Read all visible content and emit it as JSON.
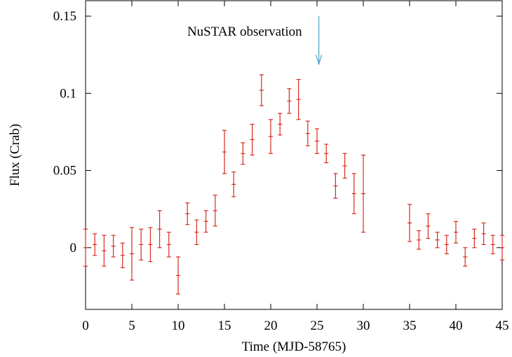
{
  "chart_data": {
    "type": "scatter",
    "xlabel": "Time (MJD-58765)",
    "ylabel": "Flux (Crab)",
    "xlim": [
      0,
      45
    ],
    "ylim": [
      -0.04,
      0.16
    ],
    "x_ticks": [
      0,
      5,
      10,
      15,
      20,
      25,
      30,
      35,
      40,
      45
    ],
    "y_ticks": [
      0,
      0.05,
      0.1,
      0.15
    ],
    "y_tick_labels": [
      "0",
      "0.05",
      "0.1",
      "0.15"
    ],
    "grid": false,
    "series": [
      {
        "color": "#d62c1c",
        "style": "points with vertical error bars",
        "points": [
          {
            "x": 0,
            "y": 0.0,
            "err": 0.012
          },
          {
            "x": 1,
            "y": 0.002,
            "err": 0.007
          },
          {
            "x": 2,
            "y": -0.002,
            "err": 0.01
          },
          {
            "x": 3,
            "y": 0.001,
            "err": 0.007
          },
          {
            "x": 4,
            "y": -0.005,
            "err": 0.008
          },
          {
            "x": 5,
            "y": -0.004,
            "err": 0.017
          },
          {
            "x": 6,
            "y": 0.002,
            "err": 0.01
          },
          {
            "x": 7,
            "y": 0.002,
            "err": 0.011
          },
          {
            "x": 8,
            "y": 0.012,
            "err": 0.012
          },
          {
            "x": 9,
            "y": 0.002,
            "err": 0.008
          },
          {
            "x": 10,
            "y": -0.018,
            "err": 0.012
          },
          {
            "x": 11,
            "y": 0.022,
            "err": 0.007
          },
          {
            "x": 12,
            "y": 0.01,
            "err": 0.008
          },
          {
            "x": 13,
            "y": 0.017,
            "err": 0.007
          },
          {
            "x": 14,
            "y": 0.024,
            "err": 0.01
          },
          {
            "x": 15,
            "y": 0.062,
            "err": 0.014
          },
          {
            "x": 16,
            "y": 0.041,
            "err": 0.008
          },
          {
            "x": 17,
            "y": 0.061,
            "err": 0.007
          },
          {
            "x": 18,
            "y": 0.07,
            "err": 0.01
          },
          {
            "x": 19,
            "y": 0.102,
            "err": 0.01
          },
          {
            "x": 20,
            "y": 0.072,
            "err": 0.011
          },
          {
            "x": 21,
            "y": 0.08,
            "err": 0.007
          },
          {
            "x": 22,
            "y": 0.095,
            "err": 0.008
          },
          {
            "x": 23,
            "y": 0.096,
            "err": 0.013
          },
          {
            "x": 24,
            "y": 0.074,
            "err": 0.008
          },
          {
            "x": 25,
            "y": 0.069,
            "err": 0.008
          },
          {
            "x": 26,
            "y": 0.061,
            "err": 0.006
          },
          {
            "x": 27,
            "y": 0.04,
            "err": 0.008
          },
          {
            "x": 28,
            "y": 0.053,
            "err": 0.008
          },
          {
            "x": 29,
            "y": 0.035,
            "err": 0.013
          },
          {
            "x": 30,
            "y": 0.035,
            "err": 0.025
          },
          {
            "x": 35,
            "y": 0.016,
            "err": 0.012
          },
          {
            "x": 36,
            "y": 0.005,
            "err": 0.006
          },
          {
            "x": 37,
            "y": 0.014,
            "err": 0.008
          },
          {
            "x": 38,
            "y": 0.005,
            "err": 0.005
          },
          {
            "x": 39,
            "y": 0.002,
            "err": 0.006
          },
          {
            "x": 40,
            "y": 0.01,
            "err": 0.007
          },
          {
            "x": 41,
            "y": -0.006,
            "err": 0.006
          },
          {
            "x": 42,
            "y": 0.006,
            "err": 0.006
          },
          {
            "x": 43,
            "y": 0.009,
            "err": 0.007
          },
          {
            "x": 44,
            "y": 0.002,
            "err": 0.006
          },
          {
            "x": 45,
            "y": 0.0,
            "err": 0.008
          }
        ]
      }
    ],
    "annotation": {
      "text": "NuSTAR observation",
      "arrow_x": 25.2,
      "arrow_y_top": 0.15,
      "arrow_y_bottom": 0.119,
      "arrow_color": "#4aa8c8"
    }
  }
}
